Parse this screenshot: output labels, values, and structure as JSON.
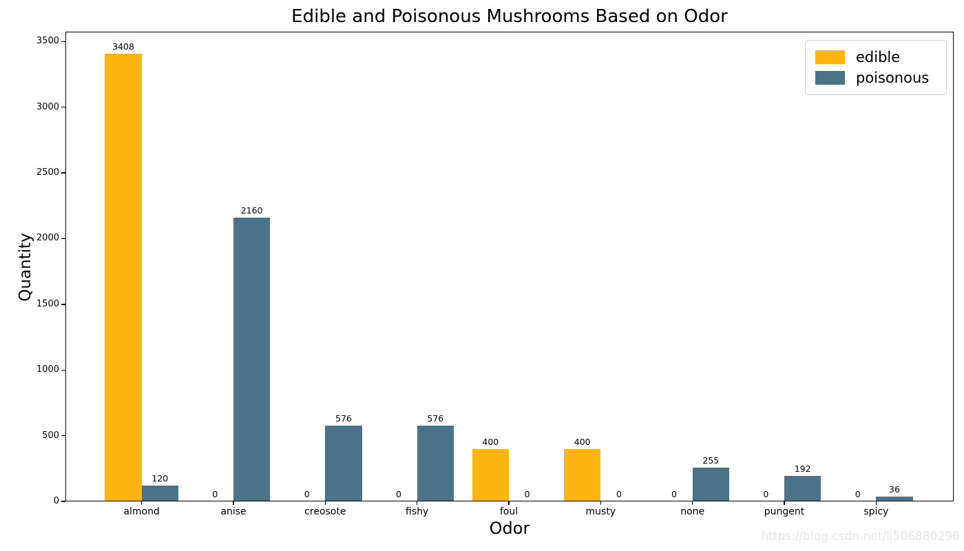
{
  "watermark": "https://blog.csdn.net/li506880296",
  "chart_data": {
    "type": "bar",
    "title": "Edible and Poisonous Mushrooms Based on Odor",
    "xlabel": "Odor",
    "ylabel": "Quantity",
    "categories": [
      "almond",
      "anise",
      "creosote",
      "fishy",
      "foul",
      "musty",
      "none",
      "pungent",
      "spicy"
    ],
    "series": [
      {
        "name": "edible",
        "color": "#fcb515",
        "values": [
          3408,
          0,
          0,
          0,
          400,
          400,
          0,
          0,
          0
        ]
      },
      {
        "name": "poisonous",
        "color": "#4c7287",
        "values": [
          120,
          2160,
          576,
          576,
          0,
          0,
          255,
          192,
          36
        ]
      }
    ],
    "bar_value_labels": [
      [
        "3408",
        "0",
        "0",
        "0",
        "400",
        "400",
        "0",
        "0",
        "0"
      ],
      [
        "120",
        "2160",
        "576",
        "576",
        "0",
        "0",
        "255",
        "192",
        "36"
      ]
    ],
    "ylim": [
      0,
      3575
    ],
    "yticks": [
      0,
      500,
      1000,
      1500,
      2000,
      2500,
      3000,
      3500
    ],
    "grid": false,
    "legend_position": "upper right"
  }
}
